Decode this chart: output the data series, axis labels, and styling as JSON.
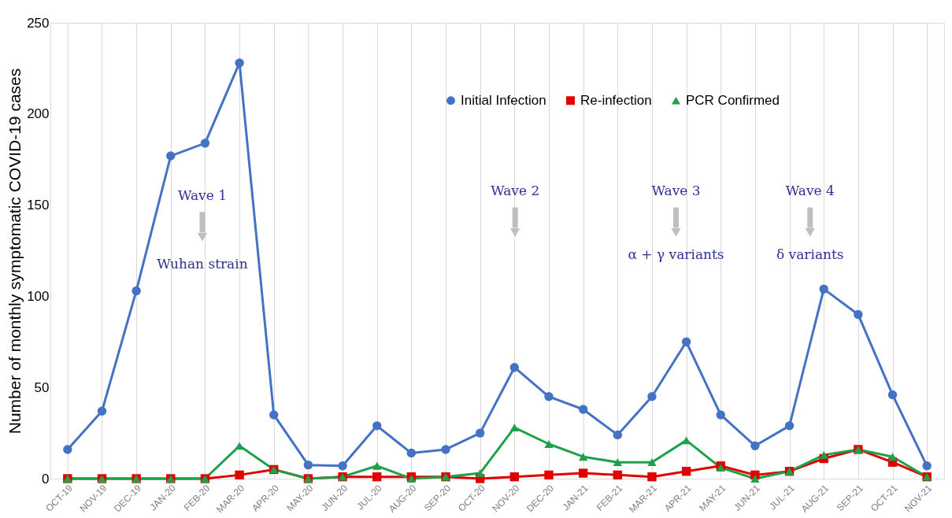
{
  "chart_data": {
    "type": "line",
    "ylabel": "Number of monthly symptomatic COVID-19 cases",
    "categories": [
      "OCT-19",
      "NOV-19",
      "DEC-19",
      "JAN-20",
      "FEB-20",
      "MAR-20",
      "APR-20",
      "MAY-20",
      "JUN-20",
      "JUL-20",
      "AUG-20",
      "SEP-20",
      "OCT-20",
      "NOV-20",
      "DEC-20",
      "JAN-21",
      "FEB-21",
      "MAR-21",
      "APR-21",
      "MAY-21",
      "JUN-21",
      "JUL-21",
      "AUG-21",
      "SEP-21",
      "OCT-21",
      "NOV-21"
    ],
    "series": [
      {
        "name": "Initial Infection",
        "color": "#4472c4",
        "marker": "circle",
        "values": [
          16,
          37,
          103,
          177,
          184,
          228,
          35,
          7.5,
          7,
          29,
          14,
          16,
          25,
          61,
          45,
          38,
          24,
          45,
          75,
          35,
          18,
          29,
          104,
          90,
          46,
          7
        ]
      },
      {
        "name": "Re-infection",
        "color": "#e00000",
        "marker": "square",
        "values": [
          0,
          0,
          0,
          0,
          0,
          2,
          5,
          0,
          1,
          1,
          1,
          1,
          0,
          1,
          2,
          3,
          2,
          1,
          4,
          7,
          2,
          4,
          11,
          16,
          9,
          1
        ]
      },
      {
        "name": "PCR Confirmed",
        "color": "#1fa04a",
        "marker": "triangle",
        "values": [
          0,
          0,
          0,
          0,
          0,
          18,
          5,
          0,
          1,
          7,
          0,
          1,
          3,
          28,
          19,
          12,
          9,
          9,
          21,
          6,
          0,
          4,
          13,
          16,
          12,
          1
        ]
      }
    ],
    "ylim": [
      0,
      250
    ],
    "yticks": [
      0,
      50,
      100,
      150,
      200,
      250
    ],
    "grid": "x",
    "legend": "top right",
    "annotations": [
      "Wave 1",
      "Wuhan strain",
      "Wave 2",
      "Wave 3",
      "α + γ variants",
      "Wave 4",
      "δ variants"
    ]
  }
}
